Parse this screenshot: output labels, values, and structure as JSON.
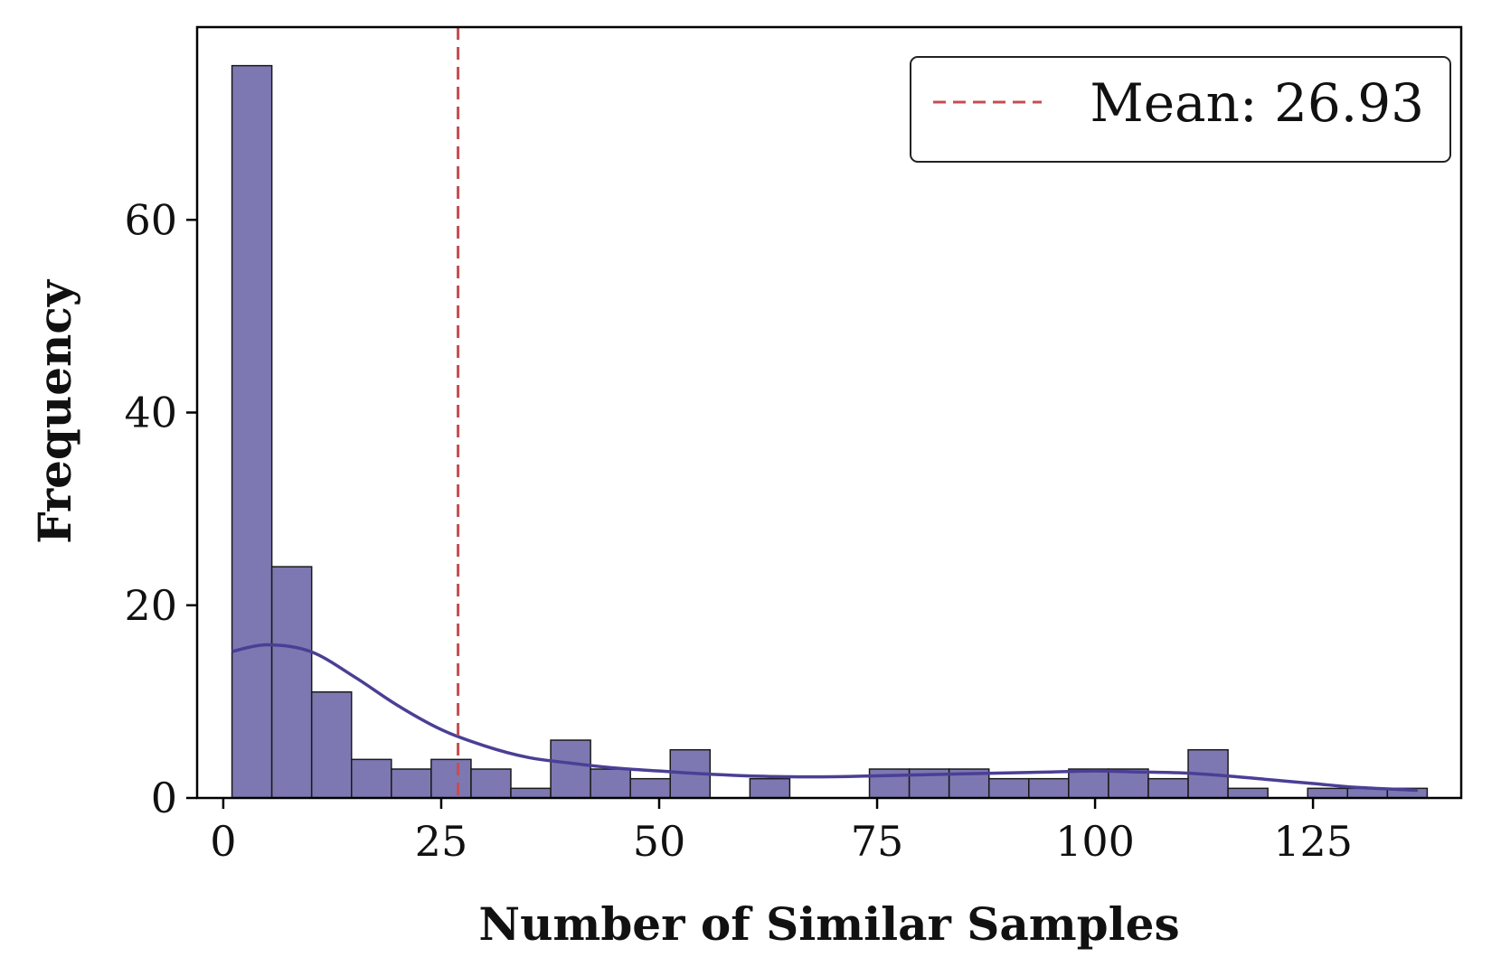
{
  "chart_data": {
    "type": "histogram",
    "xlabel": "Number of Similar Samples",
    "ylabel": "Frequency",
    "xlim": [
      -3,
      142
    ],
    "ylim": [
      0,
      80
    ],
    "x_ticks": [
      0,
      25,
      50,
      75,
      100,
      125
    ],
    "y_ticks": [
      0,
      20,
      40,
      60
    ],
    "bin_start": 1,
    "bin_width": 4.57,
    "frequencies": [
      76,
      24,
      11,
      4,
      3,
      4,
      3,
      1,
      6,
      3,
      2,
      5,
      0,
      2,
      0,
      0,
      3,
      3,
      3,
      2,
      2,
      3,
      3,
      2,
      5,
      1,
      0,
      1,
      1,
      1
    ],
    "bar_color": "#7d78b1",
    "bar_edge_color": "#1a1a1a",
    "kde": {
      "color": "#4a3f95",
      "x": [
        1,
        5,
        10,
        15,
        20,
        25,
        30,
        35,
        40,
        45,
        50,
        55,
        60,
        65,
        70,
        75,
        80,
        85,
        90,
        95,
        100,
        105,
        110,
        115,
        120,
        125,
        130,
        137
      ],
      "y": [
        15.2,
        15.9,
        15.2,
        12.6,
        9.6,
        7.1,
        5.4,
        4.2,
        3.6,
        3.1,
        2.8,
        2.5,
        2.3,
        2.2,
        2.2,
        2.3,
        2.4,
        2.5,
        2.6,
        2.7,
        2.8,
        2.7,
        2.6,
        2.3,
        1.9,
        1.5,
        1.1,
        0.8
      ]
    },
    "mean": {
      "value": 26.93,
      "label": "Mean: 26.93",
      "color": "#c44e52"
    },
    "legend_position": "top-right"
  }
}
